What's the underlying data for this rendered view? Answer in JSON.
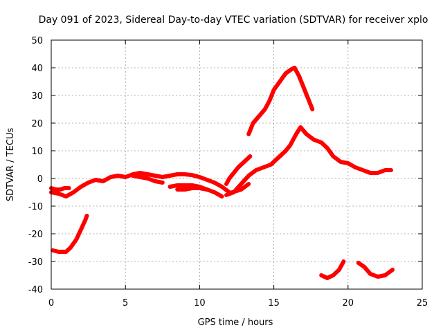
{
  "chart_data": {
    "type": "scatter",
    "title": "Day 091 of 2023, Sidereal Day-to-day VTEC variation (SDTVAR) for receiver xplo",
    "xlabel": "GPS time / hours",
    "ylabel": "SDTVAR / TECUs",
    "xlim": [
      0,
      25
    ],
    "ylim": [
      -40,
      50
    ],
    "xticks": [
      0,
      5,
      10,
      15,
      20,
      25
    ],
    "yticks": [
      -40,
      -30,
      -20,
      -10,
      0,
      10,
      20,
      30,
      40,
      50
    ],
    "xtick_labels": [
      "0",
      "5",
      "10",
      "15",
      "20",
      "25"
    ],
    "ytick_labels": [
      "-40",
      "-30",
      "-20",
      "-10",
      "0",
      "10",
      "20",
      "30",
      "40",
      "50"
    ],
    "grid": true,
    "marker_color": "#ff0000",
    "series": [
      {
        "name": "s1",
        "points": [
          [
            0,
            -3.5
          ],
          [
            0.3,
            -4
          ],
          [
            0.6,
            -4
          ],
          [
            0.9,
            -3.5
          ],
          [
            1.2,
            -3.5
          ]
        ]
      },
      {
        "name": "s2",
        "points": [
          [
            0,
            -5
          ],
          [
            0.5,
            -5.5
          ],
          [
            1,
            -6.5
          ],
          [
            1.5,
            -5
          ],
          [
            2,
            -3
          ],
          [
            2.5,
            -1.5
          ],
          [
            3,
            -0.5
          ],
          [
            3.5,
            -1
          ],
          [
            4,
            0.5
          ],
          [
            4.5,
            1
          ],
          [
            5,
            0.5
          ],
          [
            5.5,
            1.5
          ],
          [
            6,
            2
          ],
          [
            6.5,
            1.5
          ],
          [
            7,
            1
          ],
          [
            7.5,
            0.5
          ],
          [
            8,
            1
          ],
          [
            8.5,
            1.5
          ],
          [
            9,
            1.5
          ],
          [
            9.5,
            1.2
          ],
          [
            10,
            0.5
          ],
          [
            10.5,
            -0.5
          ],
          [
            11,
            -1.5
          ],
          [
            11.5,
            -3
          ],
          [
            12,
            -5
          ]
        ]
      },
      {
        "name": "s3",
        "points": [
          [
            5.5,
            1
          ],
          [
            6,
            0.5
          ],
          [
            6.5,
            0
          ],
          [
            7,
            -1
          ],
          [
            7.5,
            -1.5
          ]
        ]
      },
      {
        "name": "s4",
        "points": [
          [
            8,
            -3
          ],
          [
            8.5,
            -2.5
          ],
          [
            9,
            -2.5
          ],
          [
            9.5,
            -2.5
          ],
          [
            10,
            -3
          ],
          [
            10.5,
            -4
          ],
          [
            11,
            -5
          ],
          [
            11.5,
            -6.5
          ]
        ]
      },
      {
        "name": "s5",
        "points": [
          [
            8.5,
            -4
          ],
          [
            9,
            -4
          ],
          [
            9.5,
            -3.5
          ],
          [
            10,
            -3.5
          ],
          [
            10.5,
            -4
          ]
        ]
      },
      {
        "name": "s6",
        "points": [
          [
            0.1,
            -26
          ],
          [
            0.5,
            -26.5
          ],
          [
            1,
            -26.5
          ],
          [
            1.3,
            -25
          ],
          [
            1.7,
            -22
          ],
          [
            2,
            -18.5
          ],
          [
            2.3,
            -15
          ],
          [
            2.4,
            -13.5
          ]
        ]
      },
      {
        "name": "s7",
        "points": [
          [
            11.8,
            -2
          ],
          [
            12,
            0
          ],
          [
            12.3,
            2
          ],
          [
            12.6,
            4
          ],
          [
            13,
            6
          ],
          [
            13.4,
            8
          ]
        ]
      },
      {
        "name": "s8",
        "points": [
          [
            11.8,
            -6
          ],
          [
            12.3,
            -5
          ],
          [
            12.8,
            -2
          ],
          [
            13.3,
            1
          ],
          [
            13.8,
            3
          ],
          [
            14.3,
            4
          ],
          [
            14.8,
            5
          ],
          [
            15.3,
            7.5
          ],
          [
            15.8,
            10
          ],
          [
            16.1,
            12
          ],
          [
            16.5,
            16
          ],
          [
            16.8,
            18.5
          ],
          [
            17.2,
            16
          ],
          [
            17.7,
            14
          ],
          [
            18.2,
            13
          ],
          [
            18.6,
            11
          ],
          [
            19,
            8
          ],
          [
            19.5,
            6
          ],
          [
            20,
            5.5
          ],
          [
            20.5,
            4
          ],
          [
            21,
            3
          ],
          [
            21.5,
            2
          ],
          [
            22,
            2
          ],
          [
            22.5,
            3
          ],
          [
            22.9,
            3
          ]
        ]
      },
      {
        "name": "s9",
        "points": [
          [
            12.2,
            -5
          ],
          [
            12.8,
            -4
          ],
          [
            13.3,
            -2
          ]
        ]
      },
      {
        "name": "s10",
        "points": [
          [
            13.3,
            16
          ],
          [
            13.6,
            20
          ],
          [
            14,
            22.5
          ],
          [
            14.4,
            25
          ],
          [
            14.7,
            28
          ],
          [
            15,
            32
          ],
          [
            15.4,
            35
          ],
          [
            15.8,
            38
          ],
          [
            16.2,
            39.5
          ],
          [
            16.4,
            40
          ],
          [
            16.7,
            37
          ],
          [
            17,
            33
          ],
          [
            17.3,
            29
          ],
          [
            17.6,
            25
          ]
        ]
      },
      {
        "name": "s11",
        "points": [
          [
            18.2,
            -35
          ],
          [
            18.6,
            -36
          ],
          [
            19,
            -35
          ],
          [
            19.4,
            -33
          ],
          [
            19.7,
            -30
          ]
        ]
      },
      {
        "name": "s12",
        "points": [
          [
            20.7,
            -30.5
          ],
          [
            21.1,
            -32
          ],
          [
            21.5,
            -34.5
          ],
          [
            22,
            -35.5
          ],
          [
            22.5,
            -35
          ],
          [
            23,
            -33
          ]
        ]
      }
    ]
  }
}
